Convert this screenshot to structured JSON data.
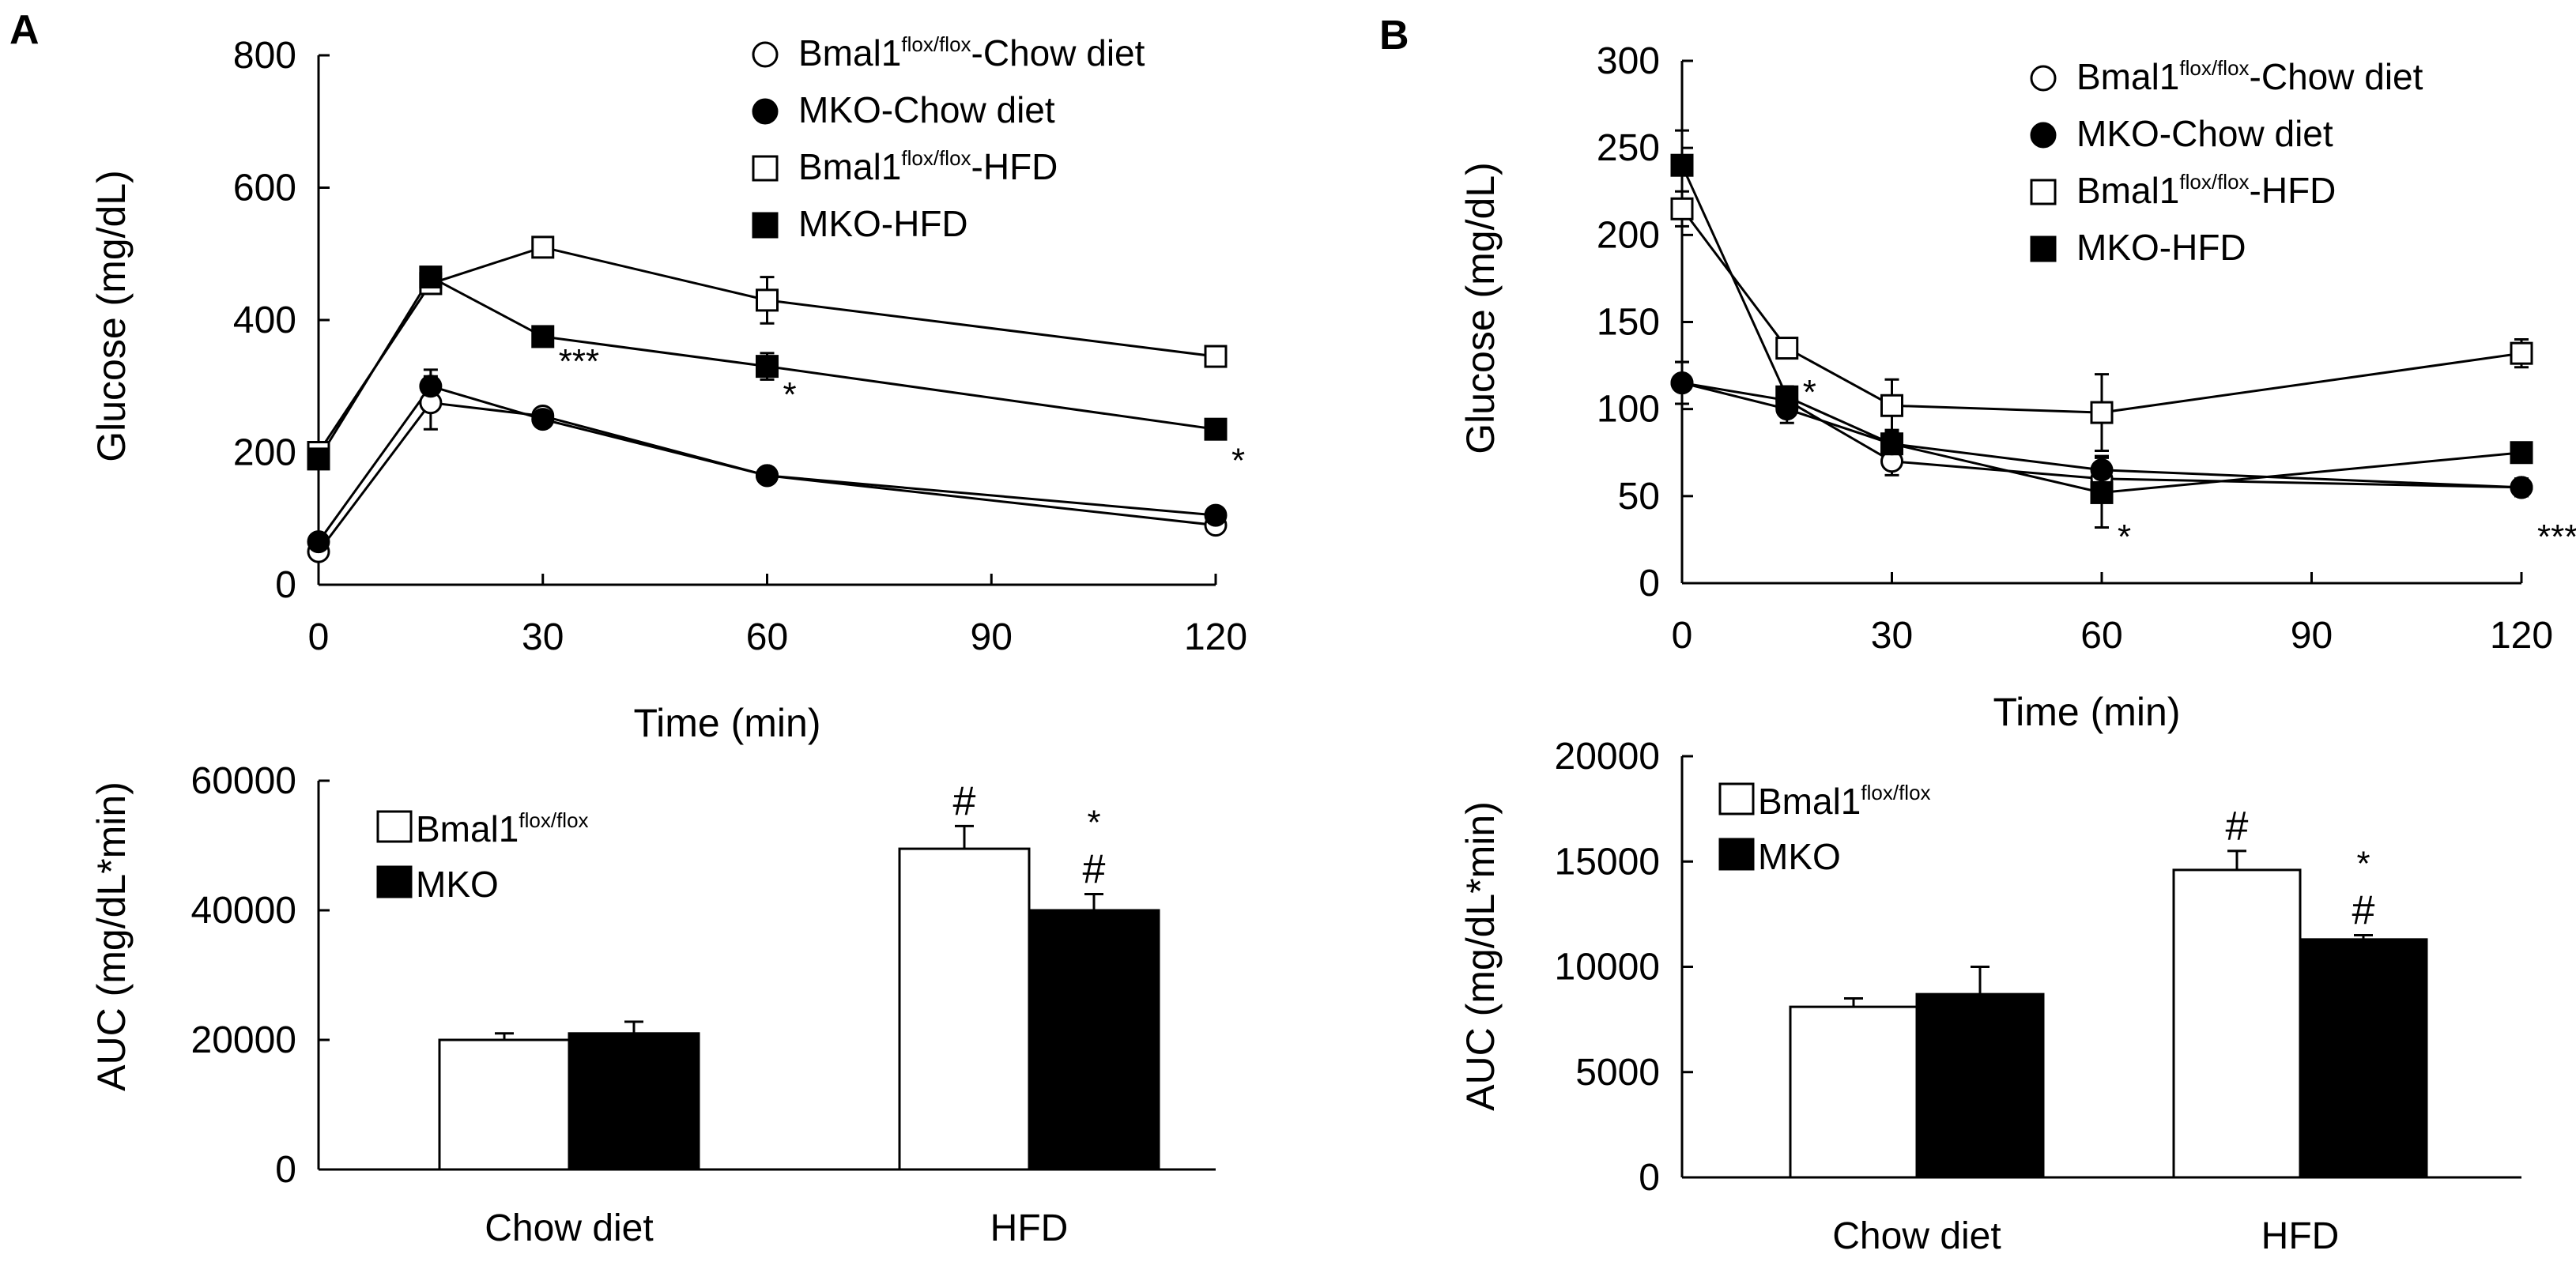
{
  "figure": {
    "panels": [
      {
        "label": "A",
        "line": {
          "title": "",
          "xlabel": "Time (min)",
          "ylabel": "Glucose (mg/dL)",
          "xlim": [
            0,
            120
          ],
          "ylim": [
            0,
            800
          ],
          "xticks": [
            0,
            30,
            60,
            90,
            120
          ],
          "yticks": [
            0,
            200,
            400,
            600,
            800
          ]
        },
        "bar": {
          "title": "",
          "xlabel": "",
          "ylabel": "AUC (mg/dL*min)",
          "ylim": [
            0,
            60000
          ],
          "yticks": [
            0,
            20000,
            40000,
            60000
          ],
          "categories": [
            "Chow diet",
            "HFD"
          ]
        }
      },
      {
        "label": "B",
        "line": {
          "title": "",
          "xlabel": "Time (min)",
          "ylabel": "Glucose (mg/dL)",
          "xlim": [
            0,
            120
          ],
          "ylim": [
            0,
            300
          ],
          "xticks": [
            0,
            30,
            60,
            90,
            120
          ],
          "yticks": [
            0,
            50,
            100,
            150,
            200,
            250,
            300
          ]
        },
        "bar": {
          "title": "",
          "xlabel": "",
          "ylabel": "AUC (mg/dL*min)",
          "ylim": [
            0,
            20000
          ],
          "yticks": [
            0,
            5000,
            10000,
            15000,
            20000
          ],
          "categories": [
            "Chow diet",
            "HFD"
          ]
        }
      }
    ]
  },
  "chart_data": [
    {
      "panel": "A",
      "type": "line",
      "title": "",
      "xlabel": "Time (min)",
      "ylabel": "Glucose (mg/dL)",
      "xlim": [
        0,
        120
      ],
      "ylim": [
        0,
        800
      ],
      "x": [
        0,
        15,
        30,
        60,
        120
      ],
      "series": [
        {
          "name": "Bmal1flox/flox-Chow diet",
          "legend_main": "Bmal1",
          "legend_sup": "flox/flox",
          "legend_rest": "-Chow diet",
          "marker": "circle-open",
          "values": [
            50,
            275,
            255,
            165,
            90
          ],
          "errors": [
            0,
            40,
            12,
            10,
            8
          ]
        },
        {
          "name": "MKO-Chow diet",
          "legend_main": "MKO-Chow diet",
          "legend_sup": "",
          "legend_rest": "",
          "marker": "circle-filled",
          "values": [
            65,
            300,
            250,
            165,
            105
          ],
          "errors": [
            0,
            25,
            10,
            10,
            8
          ]
        },
        {
          "name": "Bmal1flox/flox-HFD",
          "legend_main": "Bmal1",
          "legend_sup": "flox/flox",
          "legend_rest": "-HFD",
          "marker": "square-open",
          "values": [
            200,
            455,
            510,
            430,
            345
          ],
          "errors": [
            0,
            15,
            12,
            35,
            15
          ]
        },
        {
          "name": "MKO-HFD",
          "legend_main": "MKO-HFD",
          "legend_sup": "",
          "legend_rest": "",
          "marker": "square-filled",
          "values": [
            190,
            465,
            375,
            330,
            235
          ],
          "errors": [
            0,
            15,
            12,
            20,
            15
          ]
        }
      ],
      "annotations": [
        {
          "text": "***",
          "x": 30,
          "y": 320
        },
        {
          "text": "*",
          "x": 60,
          "y": 270
        },
        {
          "text": "*",
          "x": 120,
          "y": 170
        }
      ]
    },
    {
      "panel": "A",
      "type": "bar",
      "title": "",
      "xlabel": "",
      "ylabel": "AUC (mg/dL*min)",
      "ylim": [
        0,
        60000
      ],
      "categories": [
        "Chow diet",
        "HFD"
      ],
      "series": [
        {
          "name": "Bmal1flox/flox",
          "legend_main": "Bmal1",
          "legend_sup": "flox/flox",
          "fill": "#ffffff",
          "values": [
            20000,
            49500
          ],
          "errors": [
            1000,
            3500
          ]
        },
        {
          "name": "MKO",
          "legend_main": "MKO",
          "legend_sup": "",
          "fill": "#000000",
          "values": [
            21000,
            40000
          ],
          "errors": [
            1800,
            2500
          ]
        }
      ],
      "annotations": [
        {
          "text": "#",
          "category": "HFD",
          "series": "Bmal1flox/flox"
        },
        {
          "text": "*",
          "category": "HFD",
          "series": "MKO"
        },
        {
          "text": "#",
          "category": "HFD",
          "series": "MKO"
        }
      ]
    },
    {
      "panel": "B",
      "type": "line",
      "title": "",
      "xlabel": "Time (min)",
      "ylabel": "Glucose (mg/dL)",
      "xlim": [
        0,
        120
      ],
      "ylim": [
        0,
        300
      ],
      "x": [
        0,
        15,
        30,
        60,
        120
      ],
      "series": [
        {
          "name": "Bmal1flox/flox-Chow diet",
          "legend_main": "Bmal1",
          "legend_sup": "flox/flox",
          "legend_rest": "-Chow diet",
          "marker": "circle-open",
          "values": [
            115,
            105,
            70,
            60,
            55
          ],
          "errors": [
            12,
            8,
            8,
            8,
            5
          ]
        },
        {
          "name": "MKO-Chow diet",
          "legend_main": "MKO-Chow diet",
          "legend_sup": "",
          "legend_rest": "",
          "marker": "circle-filled",
          "values": [
            115,
            100,
            80,
            65,
            55
          ],
          "errors": [
            12,
            8,
            6,
            8,
            5
          ]
        },
        {
          "name": "Bmal1flox/flox-HFD",
          "legend_main": "Bmal1",
          "legend_sup": "flox/flox",
          "legend_rest": "-HFD",
          "marker": "square-open",
          "values": [
            215,
            135,
            102,
            98,
            132
          ],
          "errors": [
            10,
            5,
            15,
            22,
            8
          ]
        },
        {
          "name": "MKO-HFD",
          "legend_main": "MKO-HFD",
          "legend_sup": "",
          "legend_rest": "",
          "marker": "square-filled",
          "values": [
            240,
            107,
            80,
            52,
            75
          ],
          "errors": [
            20,
            5,
            8,
            20,
            5
          ]
        }
      ],
      "annotations": [
        {
          "text": "*",
          "x": 15,
          "y": 103
        },
        {
          "text": "*",
          "x": 60,
          "y": 20
        },
        {
          "text": "***",
          "x": 120,
          "y": 20
        }
      ]
    },
    {
      "panel": "B",
      "type": "bar",
      "title": "",
      "xlabel": "",
      "ylabel": "AUC (mg/dL*min)",
      "ylim": [
        0,
        20000
      ],
      "categories": [
        "Chow diet",
        "HFD"
      ],
      "series": [
        {
          "name": "Bmal1flox/flox",
          "legend_main": "Bmal1",
          "legend_sup": "flox/flox",
          "fill": "#ffffff",
          "values": [
            8100,
            14600
          ],
          "errors": [
            400,
            900
          ]
        },
        {
          "name": "MKO",
          "legend_main": "MKO",
          "legend_sup": "",
          "fill": "#000000",
          "values": [
            8700,
            11300
          ],
          "errors": [
            1300,
            200
          ]
        }
      ],
      "annotations": [
        {
          "text": "#",
          "category": "HFD",
          "series": "Bmal1flox/flox"
        },
        {
          "text": "*",
          "category": "HFD",
          "series": "MKO"
        },
        {
          "text": "#",
          "category": "HFD",
          "series": "MKO"
        }
      ]
    }
  ]
}
